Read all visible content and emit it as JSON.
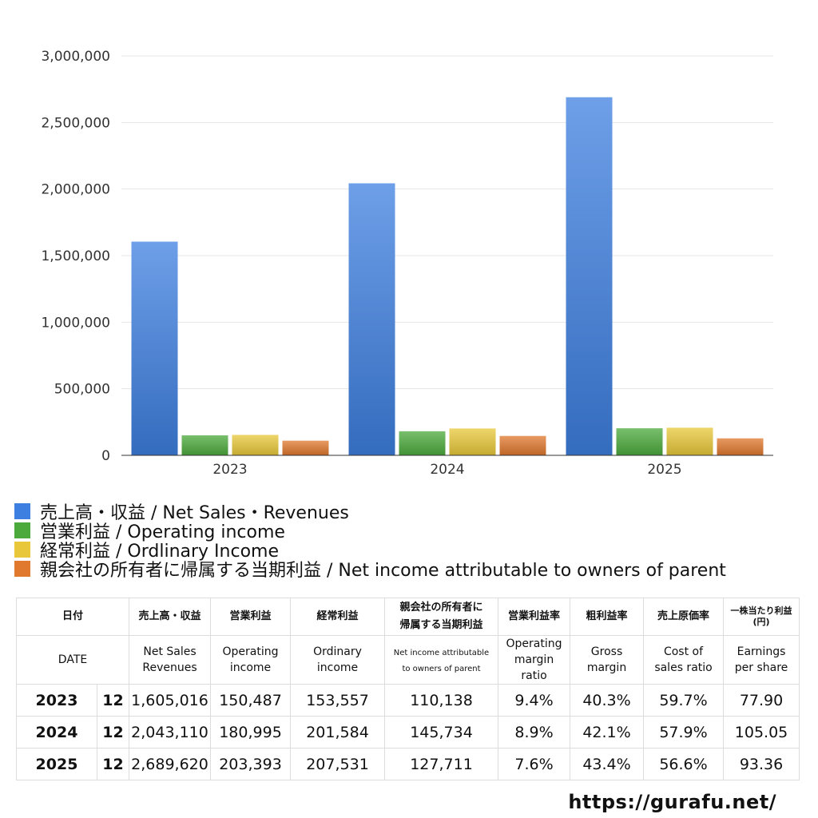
{
  "chart_data": {
    "type": "bar",
    "categories": [
      "2023",
      "2024",
      "2025"
    ],
    "series": [
      {
        "name": "売上高・収益 / Net Sales・Revenues",
        "color": "#3d7fe0",
        "values": [
          1605016,
          2043110,
          2689620
        ]
      },
      {
        "name": "営業利益 / Operating income",
        "color": "#4caa3c",
        "values": [
          150487,
          180995,
          203393
        ]
      },
      {
        "name": "経常利益 / Ordlinary Income",
        "color": "#e8c83a",
        "values": [
          153557,
          201584,
          207531
        ]
      },
      {
        "name": "親会社の所有者に帰属する当期利益 / Net income attributable to owners of parent",
        "color": "#e0782e",
        "values": [
          110138,
          145734,
          127711
        ]
      }
    ],
    "ylim": [
      0,
      3000000
    ],
    "yticks": [
      "0",
      "500,000",
      "1,000,000",
      "1,500,000",
      "2,000,000",
      "2,500,000",
      "3,000,000"
    ],
    "ytick_values": [
      0,
      500000,
      1000000,
      1500000,
      2000000,
      2500000,
      3000000
    ],
    "title": "",
    "xlabel": "",
    "ylabel": "",
    "legend_position": "bottom-left"
  },
  "table": {
    "headers_ja": [
      "日付",
      "売上高・収益",
      "営業利益",
      "経常利益",
      "親会社の所有者に",
      "帰属する当期利益",
      "営業利益率",
      "粗利益率",
      "売上原価率",
      "一株当たり利益",
      "(円)"
    ],
    "headers_en": {
      "date": "DATE",
      "sales_1": "Net Sales",
      "sales_2": "Revenues",
      "op_1": "Operating",
      "op_2": "income",
      "ord_1": "Ordinary",
      "ord_2": "income",
      "ni_1": "Net income attributable",
      "ni_2": "to owners of parent",
      "opm_1": "Operating",
      "opm_2": "margin",
      "opm_3": "ratio",
      "gm_1": "Gross",
      "gm_2": "margin",
      "cos_1": "Cost of",
      "cos_2": "sales ratio",
      "eps_1": "Earnings",
      "eps_2": "per share"
    },
    "rows": [
      {
        "year": "2023",
        "month": "12",
        "sales": "1,605,016",
        "op": "150,487",
        "ord": "153,557",
        "ni": "110,138",
        "opm": "9.4%",
        "gm": "40.3%",
        "cos": "59.7%",
        "eps": "77.90"
      },
      {
        "year": "2024",
        "month": "12",
        "sales": "2,043,110",
        "op": "180,995",
        "ord": "201,584",
        "ni": "145,734",
        "opm": "8.9%",
        "gm": "42.1%",
        "cos": "57.9%",
        "eps": "105.05"
      },
      {
        "year": "2025",
        "month": "12",
        "sales": "2,689,620",
        "op": "203,393",
        "ord": "207,531",
        "ni": "127,711",
        "opm": "7.6%",
        "gm": "43.4%",
        "cos": "56.6%",
        "eps": "93.36"
      }
    ]
  },
  "footer": {
    "url": "https://gurafu.net/"
  }
}
